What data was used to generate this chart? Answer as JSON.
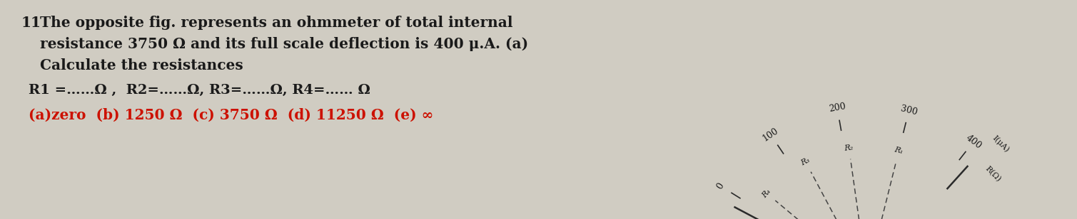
{
  "background_color": "#d0ccc2",
  "question_number": "11",
  "question_text_line1": "The opposite fig. represents an ohmmeter of total internal",
  "question_text_line2": "resistance 3750 Ω and its full scale deflection is 400 μ.A. (a)",
  "question_text_line3": "Calculate the resistances",
  "equation_line": "R1 =……Ω ,  R2=……Ω, R3=……Ω, R4=…… Ω",
  "answers_line": "(a)zero  (b) 1250 Ω  (c) 3750 Ω  (d) 11250 Ω  (e) ∞",
  "text_color": "#1a1a1a",
  "answers_color": "#cc1100",
  "main_fontsize": 14.5,
  "eq_fontsize": 14,
  "ans_fontsize": 14.5,
  "scale_labels": [
    "0",
    "100",
    "200",
    "300",
    "400"
  ],
  "scale_angles_deg": [
    148,
    124,
    100,
    76,
    52
  ],
  "resistor_labels": [
    "R₄",
    "R₃",
    "R₂",
    "R₁"
  ],
  "resistor_angles_deg": [
    140,
    118,
    98,
    76
  ],
  "needle_angles_deg": [
    140,
    118,
    98,
    76
  ],
  "ylabel_text": "I(μA)",
  "rlabel_text": "R(Ω)"
}
